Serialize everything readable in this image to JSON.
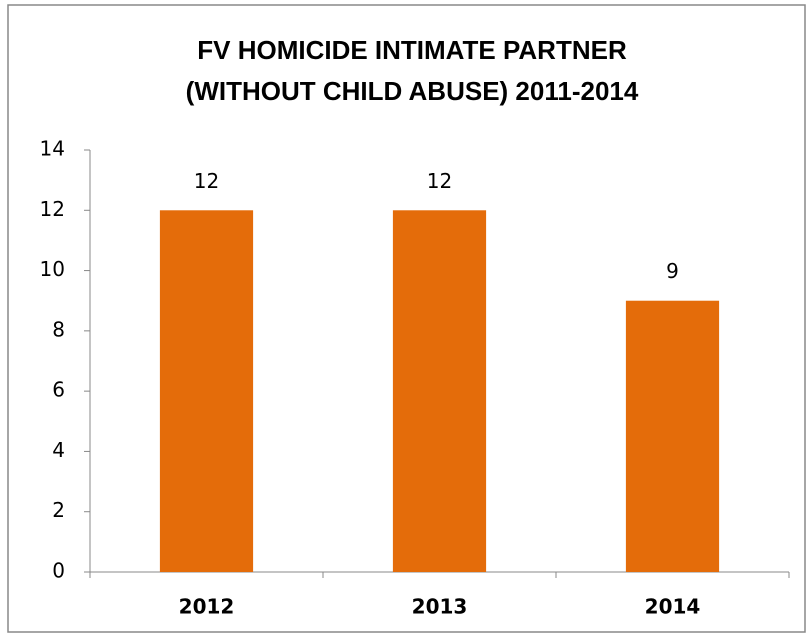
{
  "chart_data": {
    "type": "bar",
    "title": [
      "FV HOMICIDE INTIMATE PARTNER",
      "(WITHOUT CHILD ABUSE) 2011-2014"
    ],
    "categories": [
      "2012",
      "2013",
      "2014"
    ],
    "values": [
      12,
      12,
      9
    ],
    "color": "#e46c0a",
    "ylim": [
      0,
      14
    ],
    "yticks": [
      0,
      2,
      4,
      6,
      8,
      10,
      12,
      14
    ],
    "grid": false
  }
}
